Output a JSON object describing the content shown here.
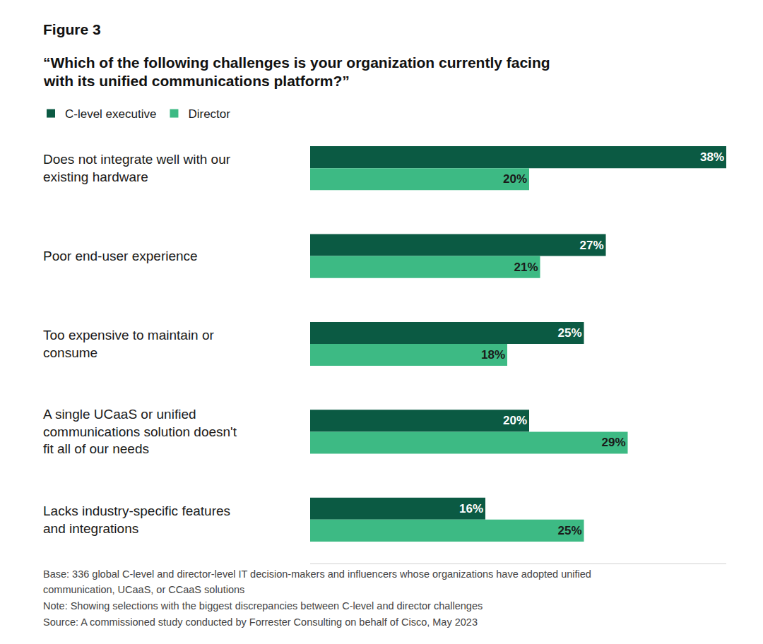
{
  "figure_label": "Figure 3",
  "chart_data": {
    "type": "bar",
    "orientation": "horizontal",
    "title": "“Which of the following challenges is your organization currently facing with its unified communications platform?”",
    "categories": [
      "Does not integrate well with our existing hardware",
      "Poor end-user experience",
      "Too expensive to maintain or consume",
      "A single UCaaS or unified communications solution doesn't fit all of our needs",
      "Lacks industry-specific features and integrations"
    ],
    "series": [
      {
        "name": "C-level executive",
        "color": "#0b5a43",
        "values": [
          38,
          27,
          25,
          20,
          16
        ],
        "value_labels": [
          "38%",
          "27%",
          "25%",
          "20%",
          "16%"
        ]
      },
      {
        "name": "Director",
        "color": "#3dba84",
        "values": [
          20,
          21,
          18,
          29,
          25
        ],
        "value_labels": [
          "20%",
          "21%",
          "18%",
          "29%",
          "25%"
        ]
      }
    ],
    "xlim": [
      0,
      38
    ],
    "grid": false,
    "legend": "top-left",
    "data_labels": true,
    "tick_labels": false
  },
  "notes": [
    "Base: 336 global C-level and director-level IT decision-makers and influencers whose organizations have adopted unified communication, UCaaS, or CCaaS solutions",
    "Note: Showing selections with the biggest discrepancies between C-level and director challenges",
    "Source: A commissioned study conducted by Forrester Consulting on behalf of Cisco, May 2023"
  ]
}
